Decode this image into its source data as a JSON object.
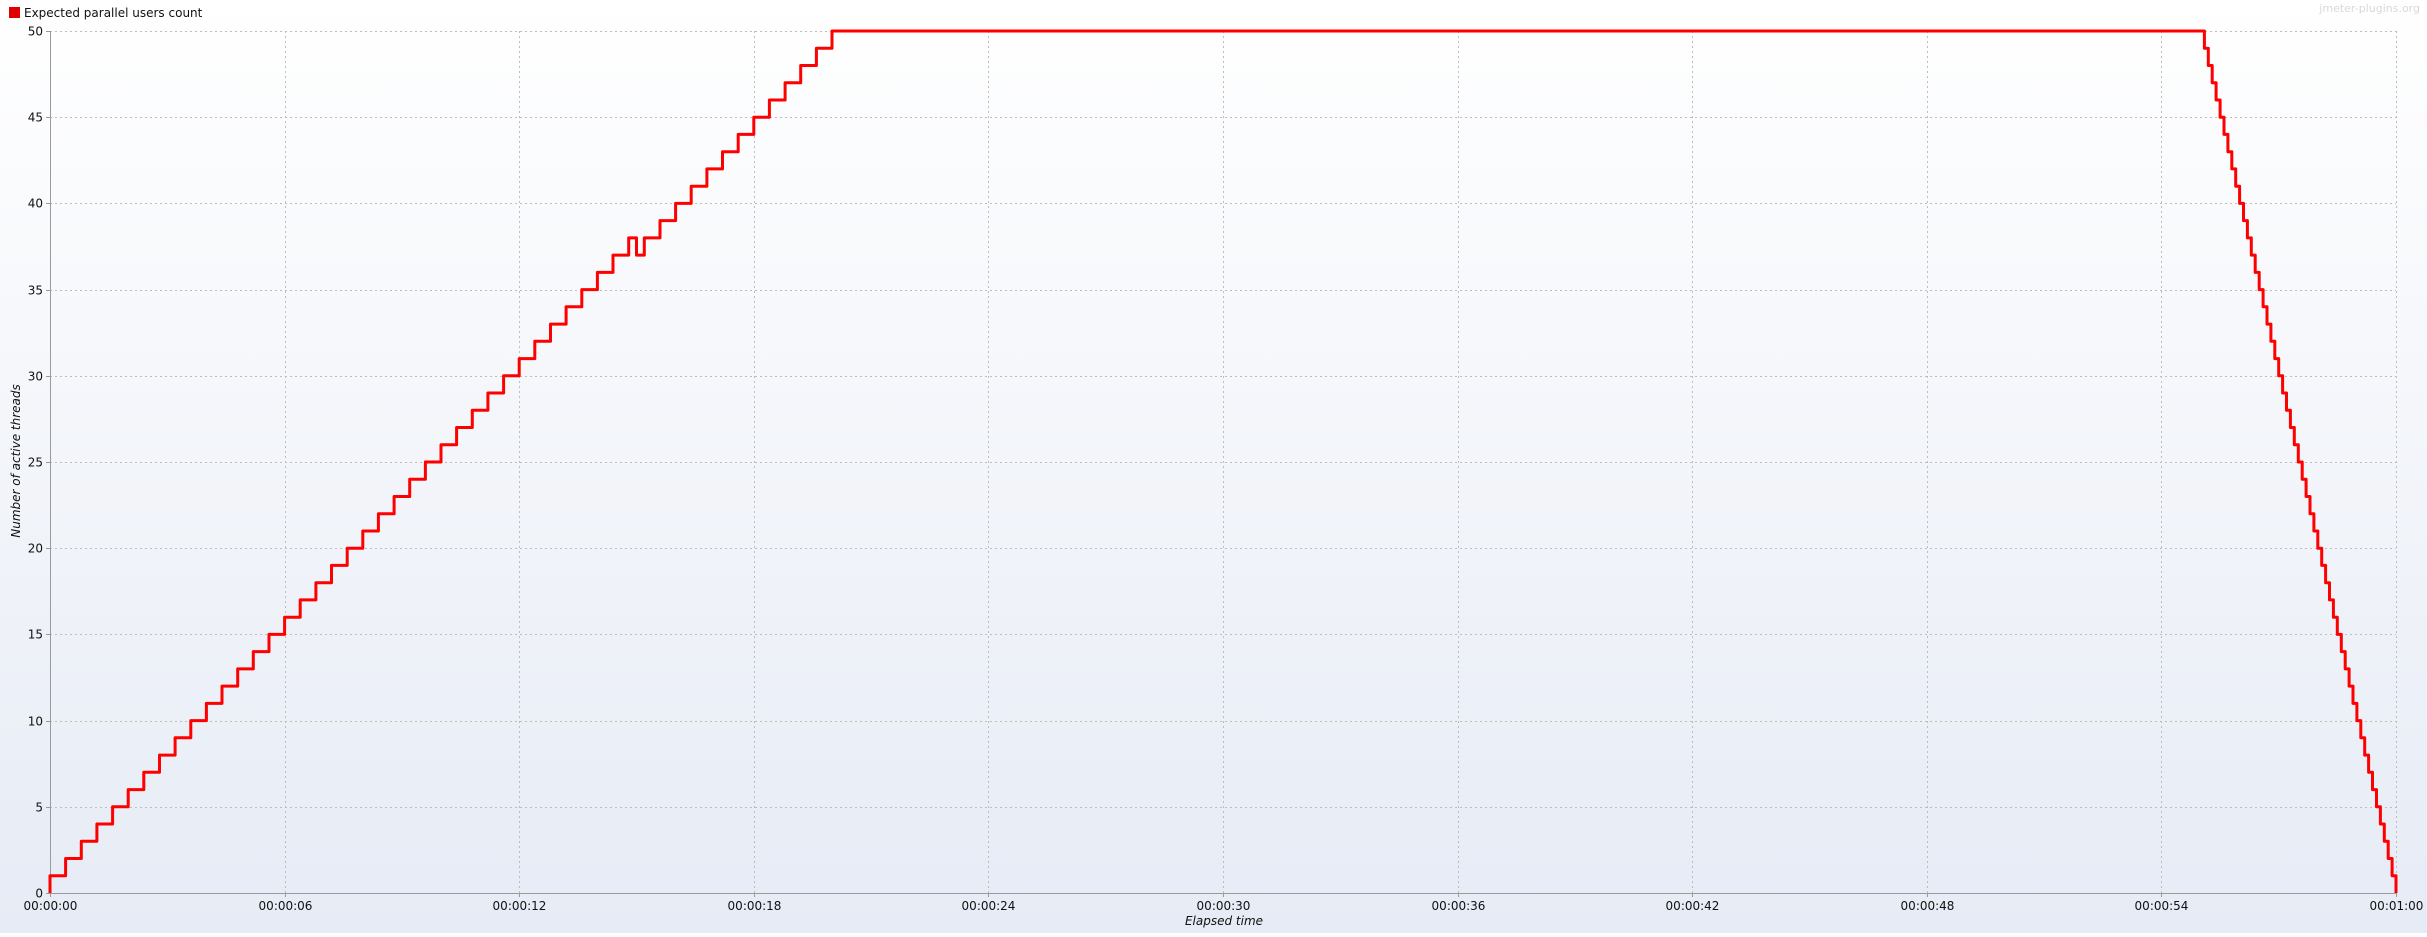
{
  "watermark": "jmeter-plugins.org",
  "colors": {
    "series": "#ff0000",
    "grid": "#bdbdbd",
    "axis": "#9a9a9a",
    "plot_top": "#ffffff",
    "plot_bottom": "#e6ebf5",
    "legend_swatch": "#e00000"
  },
  "chart_data": {
    "type": "line",
    "title": "",
    "xlabel": "Elapsed time",
    "ylabel": "Number of active threads",
    "xlim": [
      0,
      60
    ],
    "ylim": [
      0,
      50
    ],
    "x_ticks": [
      0,
      6,
      12,
      18,
      24,
      30,
      36,
      42,
      48,
      54,
      60
    ],
    "x_tick_labels": [
      "00:00:00",
      "00:00:06",
      "00:00:12",
      "00:00:18",
      "00:00:24",
      "00:00:30",
      "00:00:36",
      "00:00:42",
      "00:00:48",
      "00:00:54",
      "00:01:00"
    ],
    "y_ticks": [
      0,
      5,
      10,
      15,
      20,
      25,
      30,
      35,
      40,
      45,
      50
    ],
    "y_tick_labels": [
      "0",
      "5",
      "10",
      "15",
      "20",
      "25",
      "30",
      "35",
      "40",
      "45",
      "50"
    ],
    "grid": true,
    "legend": "top-left",
    "series": [
      {
        "name": "Expected parallel users count",
        "step": true,
        "x_unit": "seconds",
        "x": [
          0,
          0.4,
          0.8,
          1.2,
          1.6,
          2.0,
          2.4,
          2.8,
          3.2,
          3.6,
          4.0,
          4.4,
          4.8,
          5.2,
          5.6,
          6.0,
          6.4,
          6.8,
          7.2,
          7.6,
          8.0,
          8.4,
          8.8,
          9.2,
          9.6,
          10.0,
          10.4,
          10.8,
          11.2,
          11.6,
          12.0,
          12.4,
          12.8,
          13.2,
          13.6,
          14.0,
          14.4,
          14.8,
          15.0,
          15.2,
          15.6,
          16.0,
          16.4,
          16.8,
          17.2,
          17.6,
          18.0,
          18.4,
          18.8,
          19.2,
          19.6,
          20.0,
          55.0,
          55.1,
          55.2,
          55.3,
          55.4,
          55.5,
          55.6,
          55.7,
          55.8,
          55.9,
          56.0,
          56.1,
          56.2,
          56.3,
          56.4,
          56.5,
          56.6,
          56.7,
          56.8,
          56.9,
          57.0,
          57.1,
          57.2,
          57.3,
          57.4,
          57.5,
          57.6,
          57.7,
          57.8,
          57.9,
          58.0,
          58.1,
          58.2,
          58.3,
          58.4,
          58.5,
          58.6,
          58.7,
          58.8,
          58.9,
          59.0,
          59.1,
          59.2,
          59.3,
          59.4,
          59.5,
          59.6,
          59.7,
          59.8,
          59.9,
          60.0
        ],
        "y": [
          1,
          2,
          3,
          4,
          5,
          6,
          7,
          8,
          9,
          10,
          11,
          12,
          13,
          14,
          15,
          16,
          17,
          18,
          19,
          20,
          21,
          22,
          23,
          24,
          25,
          26,
          27,
          28,
          29,
          30,
          31,
          32,
          33,
          34,
          35,
          36,
          37,
          38,
          37,
          38,
          39,
          40,
          41,
          42,
          43,
          44,
          45,
          46,
          47,
          48,
          49,
          50,
          50,
          49,
          48,
          47,
          46,
          45,
          44,
          43,
          42,
          41,
          40,
          39,
          38,
          37,
          36,
          35,
          34,
          33,
          32,
          31,
          30,
          29,
          28,
          27,
          26,
          25,
          24,
          23,
          22,
          21,
          20,
          19,
          18,
          17,
          16,
          15,
          14,
          13,
          12,
          11,
          10,
          9,
          8,
          7,
          6,
          5,
          4,
          3,
          2,
          1,
          0
        ]
      }
    ]
  }
}
